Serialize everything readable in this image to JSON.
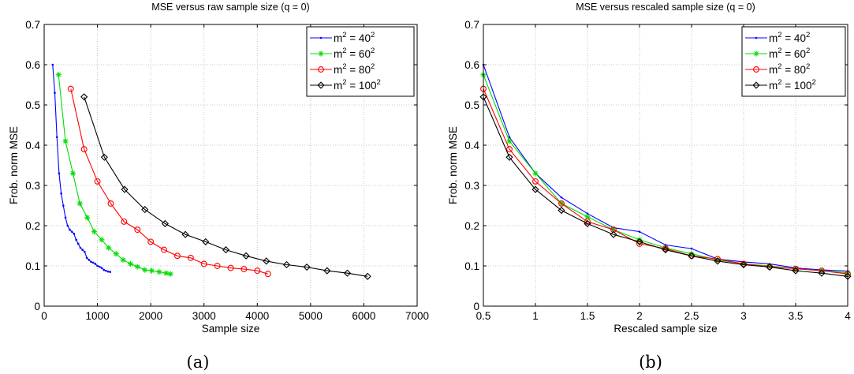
{
  "chart_data": [
    {
      "type": "line",
      "title": "MSE versus raw  sample size (q = 0)",
      "xlabel": "Sample size",
      "ylabel": "Frob. norm MSE",
      "caption": "(a)",
      "xlim": [
        0,
        7000
      ],
      "ylim": [
        0,
        0.7
      ],
      "xticks": [
        0,
        1000,
        2000,
        3000,
        4000,
        5000,
        6000,
        7000
      ],
      "xtick_labels": [
        "0",
        "1000",
        "2000",
        "3000",
        "4000",
        "5000",
        "6000",
        "7000"
      ],
      "yticks": [
        0,
        0.1,
        0.2,
        0.3,
        0.4,
        0.5,
        0.6,
        0.7
      ],
      "ytick_labels": [
        "0",
        "0.1",
        "0.2",
        "0.3",
        "0.4",
        "0.5",
        "0.6",
        "0.7"
      ],
      "grid": true,
      "legend_position": "top-right",
      "series": [
        {
          "name": "m = 40",
          "legend_base": "m",
          "legend_sup": "2",
          "legend_mid": " = 40",
          "legend_sup2": "2",
          "color": "#0000ff",
          "marker": "dot",
          "x": [
            160,
            200,
            240,
            280,
            320,
            360,
            400,
            440,
            480,
            520,
            560,
            600,
            640,
            680,
            720,
            760,
            800,
            840,
            880,
            920,
            960,
            1000,
            1040,
            1080,
            1120,
            1160,
            1200,
            1240
          ],
          "y": [
            0.6,
            0.53,
            0.42,
            0.33,
            0.28,
            0.25,
            0.22,
            0.2,
            0.19,
            0.185,
            0.18,
            0.165,
            0.155,
            0.145,
            0.14,
            0.135,
            0.12,
            0.115,
            0.11,
            0.108,
            0.105,
            0.1,
            0.098,
            0.095,
            0.09,
            0.088,
            0.086,
            0.085
          ]
        },
        {
          "name": "m = 60",
          "legend_base": "m",
          "legend_sup": "2",
          "legend_mid": " = 60",
          "legend_sup2": "2",
          "color": "#00dd00",
          "marker": "star",
          "x": [
            270,
            400,
            540,
            670,
            810,
            940,
            1080,
            1210,
            1350,
            1480,
            1620,
            1750,
            1890,
            2020,
            2160,
            2290,
            2370
          ],
          "y": [
            0.575,
            0.41,
            0.33,
            0.255,
            0.22,
            0.185,
            0.165,
            0.145,
            0.13,
            0.115,
            0.105,
            0.098,
            0.09,
            0.088,
            0.085,
            0.082,
            0.08
          ]
        },
        {
          "name": "m = 80",
          "legend_base": "m",
          "legend_sup": "2",
          "legend_mid": " = 80",
          "legend_sup2": "2",
          "color": "#ff0000",
          "marker": "circle",
          "x": [
            500,
            750,
            1000,
            1250,
            1500,
            1750,
            2000,
            2250,
            2500,
            2750,
            3000,
            3250,
            3500,
            3750,
            4000,
            4200
          ],
          "y": [
            0.54,
            0.39,
            0.31,
            0.255,
            0.21,
            0.19,
            0.16,
            0.14,
            0.125,
            0.12,
            0.105,
            0.1,
            0.095,
            0.092,
            0.088,
            0.08
          ]
        },
        {
          "name": "m = 100",
          "legend_base": "m",
          "legend_sup": "2",
          "legend_mid": " = 100",
          "legend_sup2": "2",
          "color": "#000000",
          "marker": "diamond",
          "x": [
            750,
            1130,
            1510,
            1890,
            2270,
            2650,
            3030,
            3410,
            3790,
            4170,
            4550,
            4930,
            5310,
            5690,
            6070
          ],
          "y": [
            0.52,
            0.37,
            0.29,
            0.24,
            0.205,
            0.178,
            0.16,
            0.14,
            0.125,
            0.112,
            0.103,
            0.097,
            0.088,
            0.082,
            0.074
          ]
        }
      ]
    },
    {
      "type": "line",
      "title": "MSE versus rescaled sample size (q = 0)",
      "xlabel": "Rescaled sample size",
      "ylabel": "Frob. norm MSE",
      "caption": "(b)",
      "xlim": [
        0.5,
        4
      ],
      "ylim": [
        0,
        0.7
      ],
      "xticks": [
        0.5,
        1,
        1.5,
        2,
        2.5,
        3,
        3.5,
        4
      ],
      "xtick_labels": [
        "0.5",
        "1",
        "1.5",
        "2",
        "2.5",
        "3",
        "3.5",
        "4"
      ],
      "yticks": [
        0,
        0.1,
        0.2,
        0.3,
        0.4,
        0.5,
        0.6,
        0.7
      ],
      "ytick_labels": [
        "0",
        "0.1",
        "0.2",
        "0.3",
        "0.4",
        "0.5",
        "0.6",
        "0.7"
      ],
      "grid": true,
      "legend_position": "top-right",
      "series": [
        {
          "name": "m = 40",
          "legend_base": "m",
          "legend_sup": "2",
          "legend_mid": " = 40",
          "legend_sup2": "2",
          "color": "#0000ff",
          "marker": "dot",
          "x": [
            0.5,
            0.75,
            1.0,
            1.25,
            1.5,
            1.75,
            2.0,
            2.25,
            2.5,
            2.75,
            3.0,
            3.25,
            3.5,
            3.75,
            4.0
          ],
          "y": [
            0.6,
            0.42,
            0.33,
            0.27,
            0.23,
            0.195,
            0.185,
            0.152,
            0.143,
            0.117,
            0.11,
            0.105,
            0.095,
            0.09,
            0.087
          ]
        },
        {
          "name": "m = 60",
          "legend_base": "m",
          "legend_sup": "2",
          "legend_mid": " = 60",
          "legend_sup2": "2",
          "color": "#00dd00",
          "marker": "star",
          "x": [
            0.5,
            0.75,
            1.0,
            1.25,
            1.5,
            1.75,
            2.0,
            2.25,
            2.5,
            2.75,
            3.0,
            3.25,
            3.5,
            3.75,
            4.0
          ],
          "y": [
            0.575,
            0.41,
            0.33,
            0.255,
            0.222,
            0.19,
            0.165,
            0.145,
            0.13,
            0.115,
            0.105,
            0.1,
            0.093,
            0.088,
            0.083
          ]
        },
        {
          "name": "m = 80",
          "legend_base": "m",
          "legend_sup": "2",
          "legend_mid": " = 80",
          "legend_sup2": "2",
          "color": "#ff0000",
          "marker": "circle",
          "x": [
            0.5,
            0.75,
            1.0,
            1.25,
            1.5,
            1.75,
            2.0,
            2.25,
            2.5,
            2.75,
            3.0,
            3.25,
            3.5,
            3.75,
            4.0
          ],
          "y": [
            0.54,
            0.39,
            0.31,
            0.255,
            0.21,
            0.19,
            0.155,
            0.143,
            0.125,
            0.117,
            0.105,
            0.098,
            0.093,
            0.088,
            0.08
          ]
        },
        {
          "name": "m = 100",
          "legend_base": "m",
          "legend_sup": "2",
          "legend_mid": " = 100",
          "legend_sup2": "2",
          "color": "#000000",
          "marker": "diamond",
          "x": [
            0.5,
            0.75,
            1.0,
            1.25,
            1.5,
            1.75,
            2.0,
            2.25,
            2.5,
            2.75,
            3.0,
            3.25,
            3.5,
            3.75,
            4.0
          ],
          "y": [
            0.52,
            0.37,
            0.29,
            0.238,
            0.205,
            0.178,
            0.16,
            0.14,
            0.125,
            0.112,
            0.103,
            0.097,
            0.088,
            0.082,
            0.074
          ]
        }
      ]
    }
  ]
}
